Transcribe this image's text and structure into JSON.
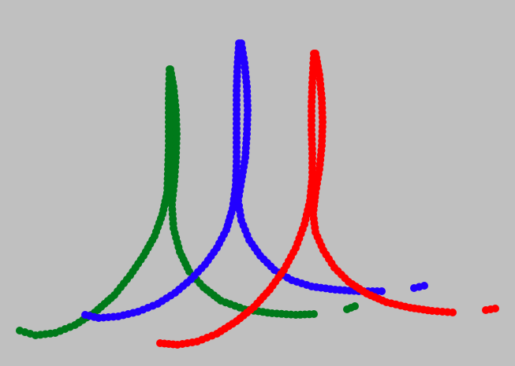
{
  "scene": {
    "background": "#c0c0c0",
    "description_visible_text": "",
    "curves": [
      {
        "name": "green-curve",
        "color": "#007a1a"
      },
      {
        "name": "blue-curve",
        "color": "#2200ff"
      },
      {
        "name": "red-curve",
        "color": "#ff0000"
      }
    ]
  }
}
